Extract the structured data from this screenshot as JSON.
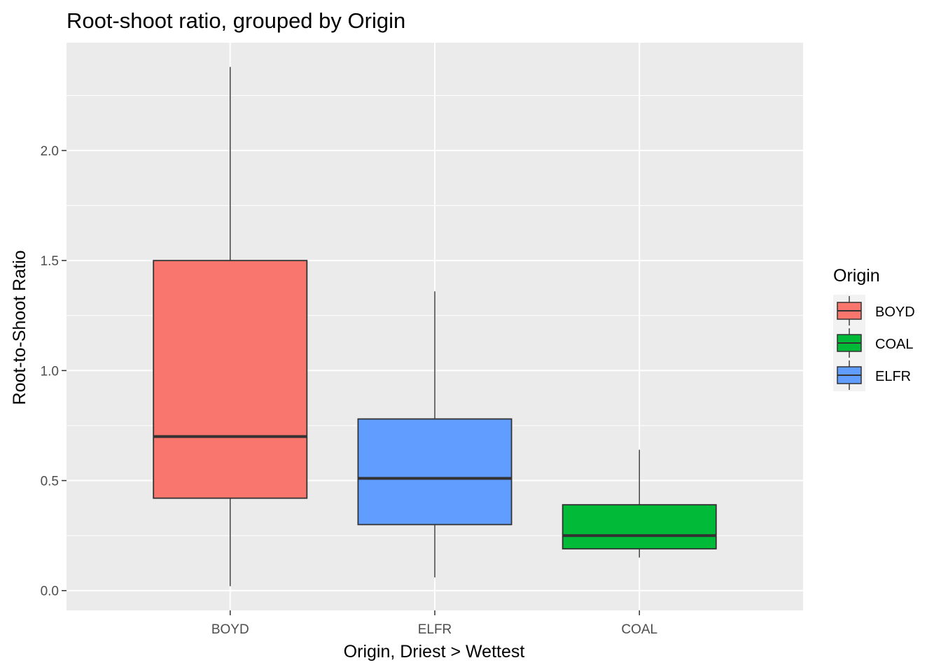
{
  "chart_data": {
    "type": "boxplot",
    "title": "Root-shoot ratio, grouped by Origin",
    "xlabel": "Origin, Driest > Wettest",
    "ylabel": "Root-to-Shoot Ratio",
    "ylim": [
      -0.09,
      2.49
    ],
    "yticks": [
      0.0,
      0.5,
      1.0,
      1.5,
      2.0
    ],
    "ytick_labels": [
      "0.0",
      "0.5",
      "1.0",
      "1.5",
      "2.0"
    ],
    "categories": [
      "BOYD",
      "ELFR",
      "COAL"
    ],
    "boxes": [
      {
        "category": "BOYD",
        "whisker_low": 0.02,
        "q1": 0.42,
        "median": 0.7,
        "q3": 1.5,
        "whisker_high": 2.38,
        "color": "#F8766D"
      },
      {
        "category": "ELFR",
        "whisker_low": 0.06,
        "q1": 0.3,
        "median": 0.51,
        "q3": 0.78,
        "whisker_high": 1.36,
        "color": "#619CFF"
      },
      {
        "category": "COAL",
        "whisker_low": 0.15,
        "q1": 0.19,
        "median": 0.25,
        "q3": 0.39,
        "whisker_high": 0.64,
        "color": "#00BA38"
      }
    ],
    "grid": true,
    "panel_background": "#EBEBEB",
    "legend": {
      "title": "Origin",
      "position": "right",
      "entries": [
        {
          "label": "BOYD",
          "color": "#F8766D"
        },
        {
          "label": "COAL",
          "color": "#00BA38"
        },
        {
          "label": "ELFR",
          "color": "#619CFF"
        }
      ]
    }
  }
}
